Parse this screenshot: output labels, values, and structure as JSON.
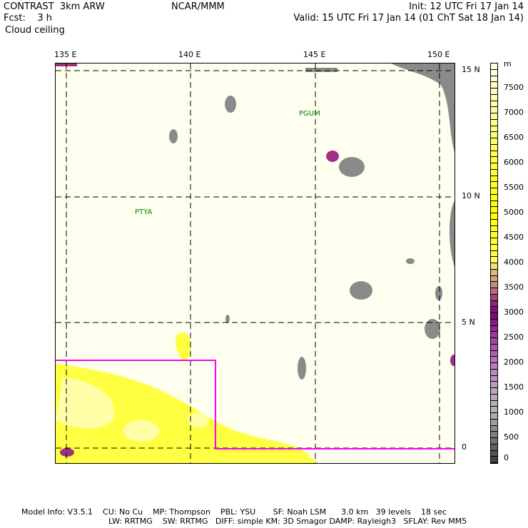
{
  "header": {
    "model": "CONTRAST  3km ARW",
    "org": "NCAR/MMM",
    "init": "Init: 12 UTC Fri 17 Jan 14",
    "fcst": "Fcst:    3 h",
    "valid": "Valid: 15 UTC Fri 17 Jan 14 (01 ChT Sat 18 Jan 14)",
    "field": "Cloud ceiling"
  },
  "map": {
    "lon_labels": [
      "135 E",
      "140 E",
      "145 E",
      "150 E"
    ],
    "lat_labels": [
      "15 N",
      "10 N",
      "5 N",
      "0"
    ],
    "stations": [
      "PGUM",
      "PTYA"
    ],
    "box_color": "#ff00ff"
  },
  "colorbar": {
    "unit": "m",
    "labels": [
      "7500",
      "7000",
      "6500",
      "6000",
      "5500",
      "5000",
      "4500",
      "4000",
      "3500",
      "3000",
      "2500",
      "2000",
      "1500",
      "1000",
      "500",
      "0"
    ],
    "min": 0,
    "max": 8000,
    "step": 125,
    "color_stops": [
      {
        "v": 0,
        "c": "#3c3c3c"
      },
      {
        "v": 1000,
        "c": "#b4b4b4"
      },
      {
        "v": 1500,
        "c": "#c0a0c0"
      },
      {
        "v": 2000,
        "c": "#b878b8"
      },
      {
        "v": 2500,
        "c": "#a040a0"
      },
      {
        "v": 3000,
        "c": "#800080"
      },
      {
        "v": 3250,
        "c": "#9a3070"
      },
      {
        "v": 3500,
        "c": "#c08080"
      },
      {
        "v": 3875,
        "c": "#e0c080"
      },
      {
        "v": 4000,
        "c": "#ffff60"
      },
      {
        "v": 5000,
        "c": "#ffff00"
      },
      {
        "v": 6000,
        "c": "#ffff40"
      },
      {
        "v": 7000,
        "c": "#ffffa0"
      },
      {
        "v": 8000,
        "c": "#ffffee"
      }
    ]
  },
  "footer": {
    "line1": "Model Info: V3.5.1    CU: No Cu    MP: Thompson    PBL: YSU       SF: Noah LSM      3.0 km   39 levels    18 sec",
    "line2": "LW: RRTMG    SW: RRTMG   DIFF: simple KM: 3D Smagor DAMP: Rayleigh3   SFLAY: Rev MM5"
  }
}
